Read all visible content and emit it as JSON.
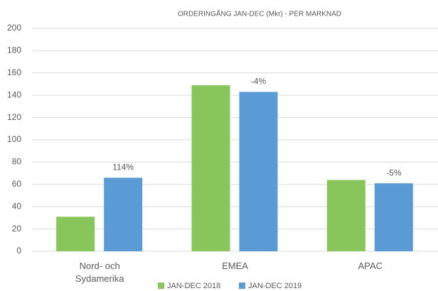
{
  "chart_data": {
    "type": "bar",
    "title": "ORDERINGÅNG JAN-DEC (Mkr) - PER MARKNAD",
    "categories": [
      "Nord- och Sydamerika",
      "EMEA",
      "APAC"
    ],
    "series": [
      {
        "name": "JAN-DEC 2018",
        "color": "#88c65c",
        "values": [
          31,
          149,
          64
        ]
      },
      {
        "name": "JAN-DEC 2019",
        "color": "#5b9bd5",
        "values": [
          66,
          143,
          61
        ]
      }
    ],
    "annotations": [
      "114%",
      "-4%",
      "-5%"
    ],
    "ylim": [
      0,
      200
    ],
    "yticks": [
      0,
      20,
      40,
      60,
      80,
      100,
      120,
      140,
      160,
      180,
      200
    ],
    "grid": true,
    "legend": "bottom"
  }
}
